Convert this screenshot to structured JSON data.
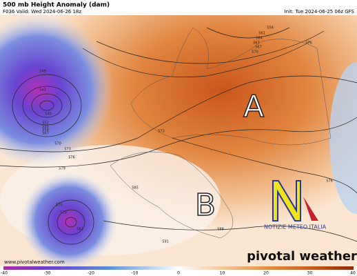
{
  "header": {
    "title": "500 mb Height Anomaly (dam)",
    "valid": "F036 Valid: Wed 2024-06-26 18z",
    "init": "Init: Tue 2024-06-25 06z GFS"
  },
  "map": {
    "high_label": "A",
    "low_label": "B",
    "contour_labels": [
      "558",
      "561",
      "564",
      "567",
      "576",
      "549",
      "543",
      "540",
      "552",
      "555",
      "558",
      "567",
      "570",
      "573",
      "576",
      "579",
      "573",
      "579",
      "582",
      "585",
      "588",
      "591",
      "573",
      "576",
      "570",
      "567"
    ]
  },
  "watermark": {
    "logo_text": "NOTIZIE METEO ITALIA",
    "brand": "pivotal weather",
    "url": "www.pivotalweather.com"
  },
  "colorbar": {
    "range": [
      -40,
      40
    ],
    "ticks": [
      -40,
      -30,
      -20,
      -10,
      0,
      10,
      20,
      30,
      40
    ]
  }
}
